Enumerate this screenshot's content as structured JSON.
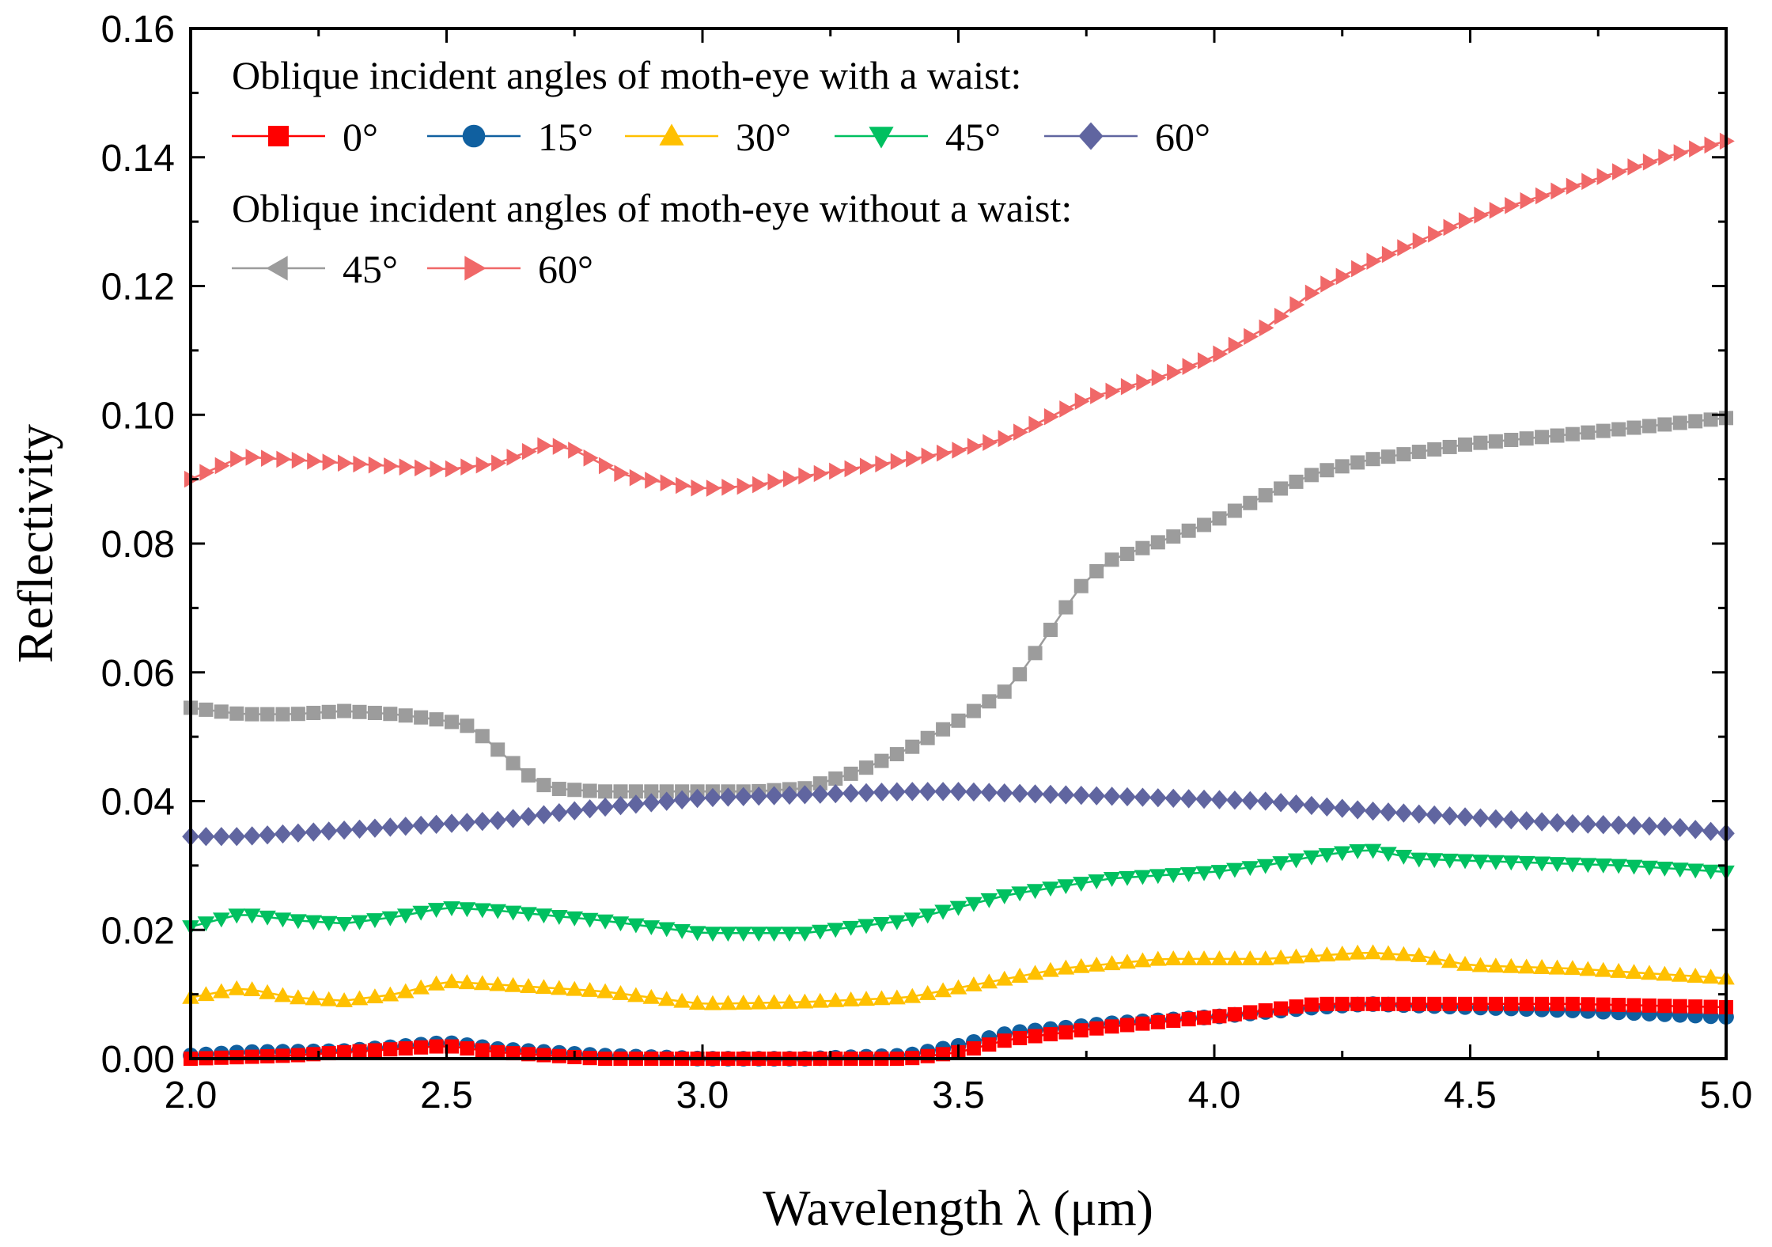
{
  "chart_data": {
    "type": "line",
    "title": "",
    "xlabel": "Wavelength λ (μm)",
    "ylabel": "Reflectivity",
    "xlim": [
      2.0,
      5.0
    ],
    "ylim": [
      0.0,
      0.16
    ],
    "xticks": [
      "2.0",
      "2.5",
      "3.0",
      "3.5",
      "4.0",
      "4.5",
      "5.0"
    ],
    "yticks": [
      "0.00",
      "0.02",
      "0.04",
      "0.06",
      "0.08",
      "0.10",
      "0.12",
      "0.14",
      "0.16"
    ],
    "grid": false,
    "legend_position": "top-left",
    "legend_groups": [
      {
        "heading": "Oblique incident angles of moth-eye with a waist:",
        "entries": [
          {
            "series": 0,
            "label": "0°"
          },
          {
            "series": 1,
            "label": "15°"
          },
          {
            "series": 2,
            "label": "30°"
          },
          {
            "series": 3,
            "label": "45°"
          },
          {
            "series": 4,
            "label": "60°"
          }
        ]
      },
      {
        "heading": "Oblique incident angles of moth-eye without a waist:",
        "entries": [
          {
            "series": 5,
            "label": "45°"
          },
          {
            "series": 6,
            "label": "60°"
          }
        ]
      }
    ],
    "series": [
      {
        "name": "0° (with waist)",
        "marker": "square",
        "color": "#ff0000",
        "points": [
          [
            2.0,
            0.0
          ],
          [
            2.2,
            0.0005
          ],
          [
            2.4,
            0.0015
          ],
          [
            2.5,
            0.002
          ],
          [
            2.6,
            0.001
          ],
          [
            2.8,
            0.0
          ],
          [
            3.0,
            0.0
          ],
          [
            3.2,
            0.0
          ],
          [
            3.4,
            0.0
          ],
          [
            3.5,
            0.001
          ],
          [
            3.6,
            0.003
          ],
          [
            3.8,
            0.005
          ],
          [
            4.0,
            0.0065
          ],
          [
            4.1,
            0.0075
          ],
          [
            4.2,
            0.0085
          ],
          [
            4.3,
            0.0085
          ],
          [
            4.5,
            0.0085
          ],
          [
            4.7,
            0.0085
          ],
          [
            5.0,
            0.008
          ]
        ]
      },
      {
        "name": "15° (with waist)",
        "marker": "circle",
        "color": "#1060a0",
        "points": [
          [
            2.0,
            0.0005
          ],
          [
            2.1,
            0.001
          ],
          [
            2.3,
            0.0012
          ],
          [
            2.5,
            0.0025
          ],
          [
            2.6,
            0.0015
          ],
          [
            2.8,
            0.0005
          ],
          [
            3.0,
            0.0
          ],
          [
            3.2,
            0.0
          ],
          [
            3.4,
            0.0005
          ],
          [
            3.5,
            0.002
          ],
          [
            3.6,
            0.004
          ],
          [
            3.8,
            0.0055
          ],
          [
            4.0,
            0.0065
          ],
          [
            4.2,
            0.008
          ],
          [
            4.3,
            0.0085
          ],
          [
            4.5,
            0.008
          ],
          [
            4.7,
            0.0075
          ],
          [
            5.0,
            0.0065
          ]
        ]
      },
      {
        "name": "30° (with waist)",
        "marker": "triangle-up",
        "color": "#ffc000",
        "points": [
          [
            2.0,
            0.0095
          ],
          [
            2.1,
            0.011
          ],
          [
            2.2,
            0.0095
          ],
          [
            2.3,
            0.009
          ],
          [
            2.4,
            0.01
          ],
          [
            2.5,
            0.012
          ],
          [
            2.6,
            0.0115
          ],
          [
            2.8,
            0.0105
          ],
          [
            3.0,
            0.0085
          ],
          [
            3.2,
            0.0088
          ],
          [
            3.4,
            0.0095
          ],
          [
            3.5,
            0.011
          ],
          [
            3.7,
            0.014
          ],
          [
            3.9,
            0.0155
          ],
          [
            4.1,
            0.0155
          ],
          [
            4.3,
            0.0165
          ],
          [
            4.4,
            0.016
          ],
          [
            4.5,
            0.0145
          ],
          [
            4.7,
            0.014
          ],
          [
            5.0,
            0.0125
          ]
        ]
      },
      {
        "name": "45° (with waist)",
        "marker": "triangle-down",
        "color": "#00c060",
        "points": [
          [
            2.0,
            0.0205
          ],
          [
            2.1,
            0.0225
          ],
          [
            2.2,
            0.0215
          ],
          [
            2.3,
            0.021
          ],
          [
            2.4,
            0.022
          ],
          [
            2.5,
            0.0235
          ],
          [
            2.6,
            0.023
          ],
          [
            2.8,
            0.0215
          ],
          [
            3.0,
            0.0195
          ],
          [
            3.2,
            0.0195
          ],
          [
            3.4,
            0.0215
          ],
          [
            3.5,
            0.0235
          ],
          [
            3.6,
            0.0255
          ],
          [
            3.8,
            0.028
          ],
          [
            4.0,
            0.029
          ],
          [
            4.1,
            0.03
          ],
          [
            4.2,
            0.0315
          ],
          [
            4.3,
            0.0325
          ],
          [
            4.4,
            0.031
          ],
          [
            4.6,
            0.0305
          ],
          [
            4.8,
            0.03
          ],
          [
            5.0,
            0.029
          ]
        ]
      },
      {
        "name": "60° (with waist)",
        "marker": "diamond",
        "color": "#6065a0",
        "points": [
          [
            2.0,
            0.0345
          ],
          [
            2.1,
            0.0345
          ],
          [
            2.2,
            0.035
          ],
          [
            2.4,
            0.036
          ],
          [
            2.5,
            0.0365
          ],
          [
            2.6,
            0.037
          ],
          [
            2.8,
            0.039
          ],
          [
            3.0,
            0.0405
          ],
          [
            3.2,
            0.041
          ],
          [
            3.4,
            0.0415
          ],
          [
            3.5,
            0.0415
          ],
          [
            3.7,
            0.041
          ],
          [
            3.9,
            0.0405
          ],
          [
            4.1,
            0.04
          ],
          [
            4.3,
            0.0385
          ],
          [
            4.5,
            0.0375
          ],
          [
            4.7,
            0.0365
          ],
          [
            4.9,
            0.036
          ],
          [
            5.0,
            0.035
          ]
        ]
      },
      {
        "name": "45° (without waist)",
        "marker": "square",
        "color": "#9c9c9c",
        "points": [
          [
            2.0,
            0.0545
          ],
          [
            2.1,
            0.0535
          ],
          [
            2.2,
            0.0535
          ],
          [
            2.3,
            0.054
          ],
          [
            2.4,
            0.0535
          ],
          [
            2.5,
            0.0525
          ],
          [
            2.55,
            0.0515
          ],
          [
            2.6,
            0.048
          ],
          [
            2.65,
            0.0445
          ],
          [
            2.7,
            0.042
          ],
          [
            2.8,
            0.0415
          ],
          [
            3.0,
            0.0415
          ],
          [
            3.1,
            0.0415
          ],
          [
            3.2,
            0.042
          ],
          [
            3.3,
            0.0445
          ],
          [
            3.4,
            0.048
          ],
          [
            3.5,
            0.0525
          ],
          [
            3.6,
            0.0575
          ],
          [
            3.65,
            0.063
          ],
          [
            3.7,
            0.069
          ],
          [
            3.75,
            0.0745
          ],
          [
            3.8,
            0.0775
          ],
          [
            3.9,
            0.0805
          ],
          [
            4.0,
            0.0835
          ],
          [
            4.1,
            0.0875
          ],
          [
            4.2,
            0.091
          ],
          [
            4.3,
            0.093
          ],
          [
            4.5,
            0.0955
          ],
          [
            4.7,
            0.097
          ],
          [
            5.0,
            0.0995
          ]
        ]
      },
      {
        "name": "60° (without waist)",
        "marker": "triangle-right",
        "color": "#f06868",
        "points": [
          [
            2.0,
            0.09
          ],
          [
            2.1,
            0.0935
          ],
          [
            2.3,
            0.0925
          ],
          [
            2.5,
            0.0915
          ],
          [
            2.6,
            0.0925
          ],
          [
            2.7,
            0.0955
          ],
          [
            2.75,
            0.0945
          ],
          [
            2.85,
            0.0905
          ],
          [
            3.0,
            0.0885
          ],
          [
            3.1,
            0.089
          ],
          [
            3.2,
            0.0905
          ],
          [
            3.4,
            0.093
          ],
          [
            3.5,
            0.0945
          ],
          [
            3.6,
            0.0965
          ],
          [
            3.75,
            0.1025
          ],
          [
            3.9,
            0.106
          ],
          [
            4.0,
            0.109
          ],
          [
            4.1,
            0.1135
          ],
          [
            4.2,
            0.1195
          ],
          [
            4.3,
            0.1235
          ],
          [
            4.5,
            0.1305
          ],
          [
            4.7,
            0.1355
          ],
          [
            4.9,
            0.1405
          ],
          [
            5.0,
            0.1425
          ]
        ]
      }
    ]
  }
}
